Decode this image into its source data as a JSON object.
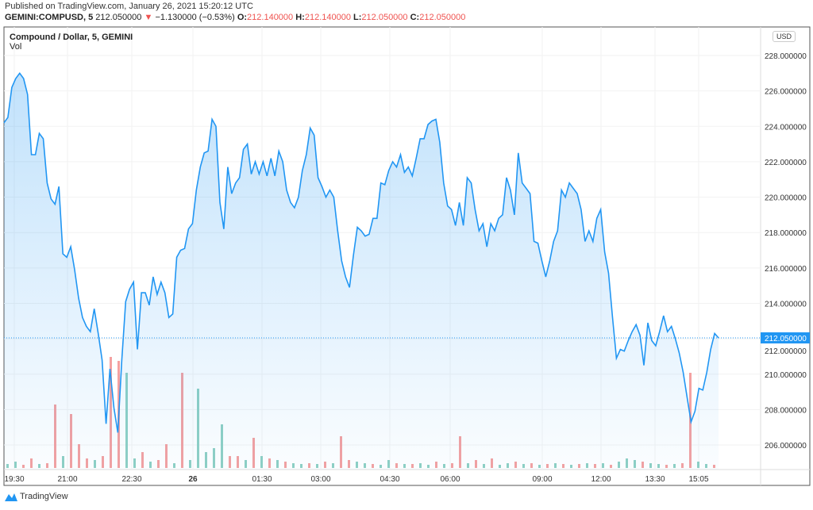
{
  "header": {
    "published": "Published on TradingView.com, January 26, 2021 15:20:12 UTC",
    "symbol": "GEMINI:COMPUSD, 5",
    "last": "212.050000",
    "arrow": "▼",
    "change": "−1.130000 (−0.53%)",
    "o_label": "O:",
    "o": "212.140000",
    "h_label": "H:",
    "h": "212.140000",
    "l_label": "L:",
    "l": "212.050000",
    "c_label": "C:",
    "c": "212.050000"
  },
  "legend": {
    "title": "Compound / Dollar, 5, GEMINI",
    "vol": "Vol"
  },
  "currency": "USD",
  "brand": "TradingView",
  "colors": {
    "line": "#2196f3",
    "up": "#8fd0c4",
    "down": "#f4a1a1",
    "lastbg": "#2196f3"
  },
  "chart_data": {
    "type": "area",
    "title": "Compound / Dollar, 5, GEMINI",
    "ylim": [
      205,
      229
    ],
    "y_ticks": [
      "228.000000",
      "226.000000",
      "224.000000",
      "222.000000",
      "220.000000",
      "218.000000",
      "216.000000",
      "214.000000",
      "212.000000",
      "210.000000",
      "208.000000",
      "206.000000"
    ],
    "x_ticks": [
      "19:30",
      "21:00",
      "22:30",
      "26",
      "01:30",
      "03:00",
      "04:30",
      "06:00",
      "09:00",
      "12:00",
      "13:30",
      "15:05"
    ],
    "last_price_label": "212.050000",
    "last_price": 212.05,
    "price": [
      224.2,
      224.5,
      226.2,
      226.7,
      227.0,
      226.7,
      225.8,
      222.4,
      222.4,
      223.6,
      223.3,
      220.8,
      219.9,
      219.6,
      220.6,
      216.8,
      216.6,
      217.2,
      215.9,
      214.3,
      213.2,
      212.7,
      212.4,
      213.7,
      212.3,
      210.8,
      207.2,
      210.3,
      208.1,
      206.7,
      210.8,
      214.1,
      214.8,
      215.2,
      211.4,
      214.6,
      214.6,
      213.9,
      215.5,
      214.5,
      215.2,
      214.6,
      213.2,
      213.4,
      216.6,
      217.0,
      217.1,
      218.2,
      218.5,
      220.4,
      221.7,
      222.5,
      222.6,
      224.4,
      224.0,
      219.7,
      218.2,
      221.7,
      220.2,
      220.8,
      221.1,
      222.7,
      223.0,
      221.3,
      222.0,
      221.3,
      222.0,
      221.2,
      222.2,
      221.2,
      222.6,
      222.0,
      220.4,
      219.7,
      219.4,
      220.0,
      221.5,
      222.4,
      223.9,
      223.5,
      221.1,
      220.6,
      220.0,
      220.4,
      220.0,
      218.1,
      216.4,
      215.5,
      214.9,
      216.7,
      218.3,
      218.1,
      217.8,
      217.9,
      218.8,
      218.8,
      220.8,
      220.7,
      221.5,
      222.0,
      221.7,
      222.4,
      221.4,
      221.7,
      221.2,
      222.2,
      223.3,
      223.3,
      224.1,
      224.3,
      224.4,
      223.1,
      220.8,
      219.5,
      219.3,
      218.4,
      219.7,
      218.4,
      221.1,
      220.8,
      219.3,
      218.1,
      218.5,
      217.2,
      218.5,
      218.1,
      218.8,
      219.0,
      221.1,
      220.4,
      219.0,
      222.5,
      220.8,
      220.5,
      220.2,
      217.5,
      217.4,
      216.4,
      215.5,
      216.4,
      217.5,
      218.1,
      220.4,
      220.0,
      220.8,
      220.5,
      220.2,
      219.3,
      217.5,
      218.1,
      217.5,
      218.8,
      219.3,
      216.9,
      215.7,
      213.2,
      210.9,
      211.4,
      211.3,
      211.9,
      212.4,
      212.8,
      212.2,
      210.5,
      212.9,
      211.9,
      211.6,
      212.4,
      213.3,
      212.4,
      212.7,
      212.0,
      211.2,
      210.1,
      208.7,
      207.3,
      207.9,
      209.2,
      209.1,
      210.1,
      211.4,
      212.3,
      212.05
    ],
    "volume": [
      5,
      8,
      4,
      12,
      5,
      6,
      80,
      15,
      68,
      30,
      12,
      10,
      15,
      140,
      135,
      120,
      12,
      20,
      8,
      10,
      30,
      6,
      120,
      10,
      100,
      20,
      25,
      55,
      15,
      15,
      10,
      38,
      15,
      12,
      10,
      8,
      6,
      5,
      6,
      5,
      8,
      6,
      40,
      10,
      8,
      6,
      5,
      4,
      10,
      6,
      5,
      5,
      6,
      4,
      8,
      5,
      6,
      40,
      6,
      10,
      5,
      12,
      4,
      6,
      8,
      5,
      6,
      4,
      5,
      6,
      5,
      4,
      5,
      6,
      5,
      6,
      4,
      8,
      12,
      10,
      8,
      6,
      5,
      4,
      5,
      6,
      120,
      8,
      5,
      4
    ],
    "volume_dir": [
      "u",
      "u",
      "d",
      "d",
      "u",
      "d",
      "d",
      "u",
      "d",
      "d",
      "d",
      "u",
      "d",
      "d",
      "d",
      "u",
      "u",
      "d",
      "u",
      "d",
      "d",
      "u",
      "d",
      "u",
      "u",
      "u",
      "u",
      "u",
      "d",
      "d",
      "u",
      "d",
      "u",
      "d",
      "u",
      "d",
      "u",
      "u",
      "d",
      "u",
      "d",
      "u",
      "d",
      "d",
      "u",
      "u",
      "d",
      "u",
      "u",
      "d",
      "u",
      "d",
      "u",
      "u",
      "d",
      "u",
      "d",
      "d",
      "u",
      "d",
      "u",
      "d",
      "u",
      "u",
      "d",
      "u",
      "d",
      "u",
      "d",
      "u",
      "d",
      "u",
      "d",
      "u",
      "d",
      "u",
      "d",
      "u",
      "u",
      "u",
      "d",
      "u",
      "u",
      "d",
      "u",
      "d",
      "d",
      "u",
      "u",
      "d"
    ]
  }
}
